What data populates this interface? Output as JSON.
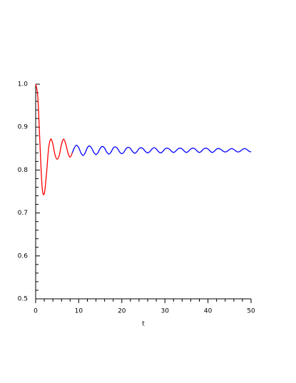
{
  "chart_data": {
    "type": "line",
    "xlabel": "t",
    "series": [
      {
        "color": "#ff0000",
        "x": [
          0,
          0.5,
          1,
          1.5,
          2,
          2.5,
          3,
          3.5,
          4,
          4.5,
          5,
          5.5,
          6,
          6.5,
          7,
          7.5,
          8,
          8.5
        ],
        "values": [
          1.0,
          0.97,
          0.86,
          0.76,
          0.745,
          0.79,
          0.85,
          0.872,
          0.86,
          0.835,
          0.825,
          0.835,
          0.86,
          0.872,
          0.86,
          0.84,
          0.83,
          0.84
        ]
      },
      {
        "color": "#0000ff",
        "x": [
          8.5,
          9,
          9.5,
          10,
          10.5,
          11,
          11.5,
          12,
          12.5,
          13,
          13.5,
          14,
          14.5,
          15,
          15.5,
          16,
          16.5,
          17,
          17.5,
          18,
          18.5,
          19,
          19.5,
          20,
          20.5,
          21,
          21.5,
          22,
          22.5,
          23,
          23.5,
          24,
          24.5,
          25,
          25.5,
          26,
          26.5,
          27,
          27.5,
          28,
          28.5,
          29,
          29.5,
          30,
          30.5,
          31,
          31.5,
          32,
          32.5,
          33,
          33.5,
          34,
          34.5,
          35,
          35.5,
          36,
          36.5,
          37,
          37.5,
          38,
          38.5,
          39,
          39.5,
          40,
          40.5,
          41,
          41.5,
          42,
          42.5,
          43,
          43.5,
          44,
          44.5,
          45,
          45.5,
          46,
          46.5,
          47,
          47.5,
          48,
          48.5,
          49,
          49.5,
          50
        ],
        "values": [
          0.84,
          0.852,
          0.858,
          0.852,
          0.84,
          0.834,
          0.84,
          0.852,
          0.856,
          0.851,
          0.841,
          0.836,
          0.841,
          0.851,
          0.855,
          0.851,
          0.842,
          0.837,
          0.842,
          0.851,
          0.854,
          0.85,
          0.842,
          0.838,
          0.842,
          0.85,
          0.853,
          0.85,
          0.843,
          0.839,
          0.843,
          0.85,
          0.852,
          0.849,
          0.843,
          0.84,
          0.843,
          0.849,
          0.852,
          0.849,
          0.843,
          0.84,
          0.843,
          0.849,
          0.851,
          0.849,
          0.844,
          0.841,
          0.844,
          0.849,
          0.851,
          0.849,
          0.844,
          0.841,
          0.844,
          0.849,
          0.851,
          0.849,
          0.844,
          0.841,
          0.844,
          0.849,
          0.851,
          0.849,
          0.844,
          0.841,
          0.844,
          0.849,
          0.85,
          0.848,
          0.844,
          0.842,
          0.844,
          0.848,
          0.85,
          0.848,
          0.844,
          0.842,
          0.844,
          0.848,
          0.85,
          0.848,
          0.844,
          0.842
        ]
      }
    ],
    "xlim": [
      0,
      50
    ],
    "ylim": [
      0.5,
      1.0
    ],
    "xticks": [
      0,
      10,
      20,
      30,
      40,
      50
    ],
    "xminorticks": [
      2,
      4,
      6,
      8,
      12,
      14,
      16,
      18,
      22,
      24,
      26,
      28,
      32,
      34,
      36,
      38,
      42,
      44,
      46,
      48
    ],
    "yticks": [
      0.5,
      0.6,
      0.7,
      0.8,
      0.9,
      {
        "value": 1,
        "label": "1.0"
      }
    ],
    "yminorticks": [
      0.52,
      0.54,
      0.56,
      0.58,
      0.62,
      0.64,
      0.66,
      0.68,
      0.72,
      0.74,
      0.76,
      0.78,
      0.82,
      0.84,
      0.86,
      0.88,
      0.92,
      0.94,
      0.96,
      0.98
    ]
  }
}
